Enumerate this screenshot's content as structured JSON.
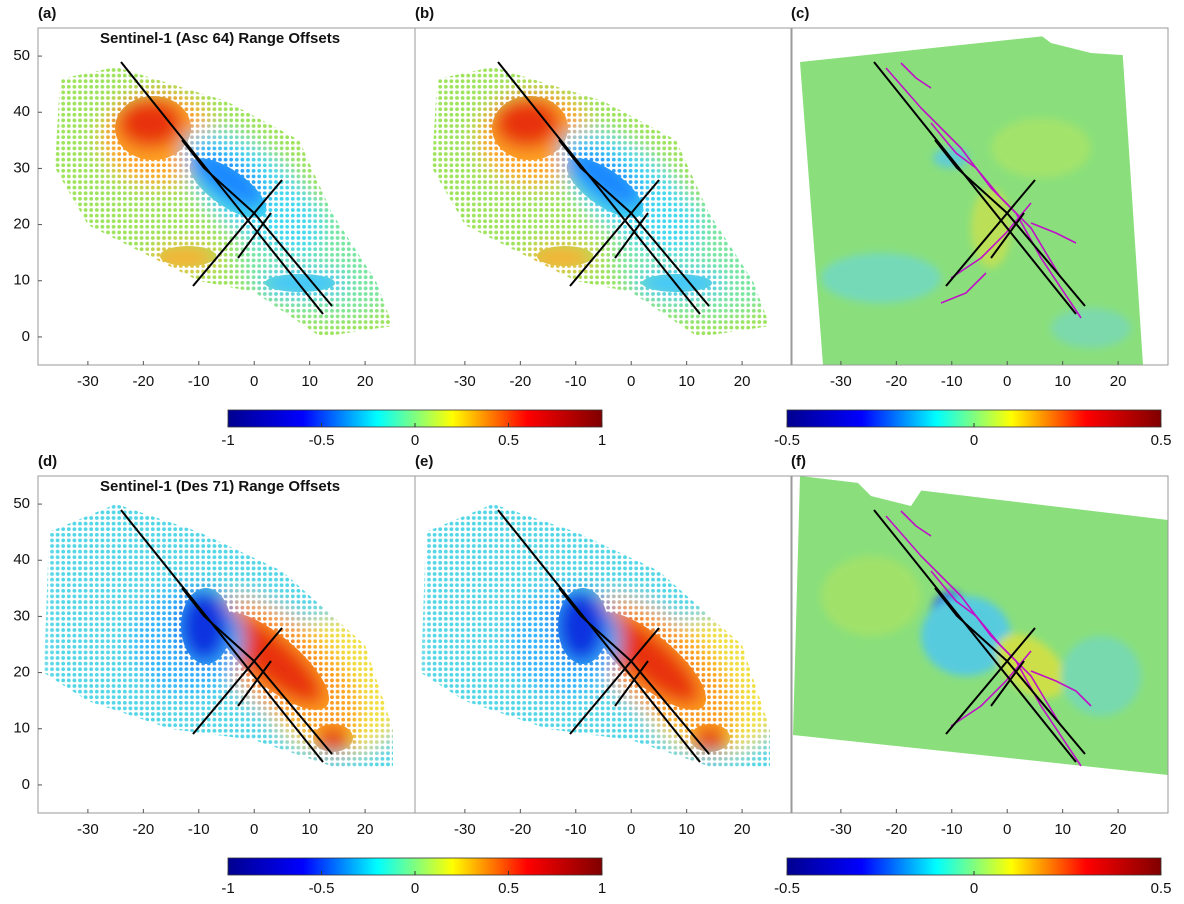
{
  "chart_data": [
    {
      "type": "image",
      "panel_label": "(a)",
      "title": "Sentinel-1 (Asc 64) Range Offsets",
      "xlim": [
        -39,
        29
      ],
      "ylim": [
        -5,
        55
      ],
      "xticks": [
        -30,
        -20,
        -10,
        0,
        10,
        20
      ],
      "yticks": [
        0,
        10,
        20,
        30,
        40,
        50
      ]
    },
    {
      "type": "image",
      "panel_label": "(b)",
      "xlim": [
        -39,
        29
      ],
      "ylim": [
        -5,
        55
      ],
      "xticks": [
        -30,
        -20,
        -10,
        0,
        10,
        20
      ]
    },
    {
      "type": "image",
      "panel_label": "(c)",
      "xlim": [
        -39,
        29
      ],
      "ylim": [
        -5,
        55
      ],
      "xticks": [
        -30,
        -20,
        -10,
        0,
        10,
        20
      ]
    },
    {
      "type": "image",
      "panel_label": "(d)",
      "title": "Sentinel-1 (Des 71) Range Offsets",
      "xlim": [
        -39,
        29
      ],
      "ylim": [
        -5,
        55
      ],
      "xticks": [
        -30,
        -20,
        -10,
        0,
        10,
        20
      ],
      "yticks": [
        0,
        10,
        20,
        30,
        40,
        50
      ]
    },
    {
      "type": "image",
      "panel_label": "(e)",
      "xlim": [
        -39,
        29
      ],
      "ylim": [
        -5,
        55
      ],
      "xticks": [
        -30,
        -20,
        -10,
        0,
        10,
        20
      ]
    },
    {
      "type": "image",
      "panel_label": "(f)",
      "xlim": [
        -39,
        29
      ],
      "ylim": [
        -5,
        55
      ],
      "xticks": [
        -30,
        -20,
        -10,
        0,
        10,
        20
      ]
    },
    {
      "type": "colorbar",
      "clim": [
        -1,
        1
      ],
      "ticks": [
        -1,
        -0.5,
        0,
        0.5,
        1
      ],
      "colormap": [
        "#00008f",
        "#0000ff",
        "#00ffff",
        "#ffff00",
        "#ff0000",
        "#800000"
      ]
    },
    {
      "type": "colorbar",
      "clim": [
        -0.5,
        0.5
      ],
      "ticks": [
        -0.5,
        0,
        0.5
      ],
      "colormap": [
        "#00008f",
        "#0000ff",
        "#00ffff",
        "#ffff00",
        "#ff0000",
        "#800000"
      ]
    },
    {
      "type": "colorbar",
      "clim": [
        -1,
        1
      ],
      "ticks": [
        -1,
        -0.5,
        0,
        0.5,
        1
      ],
      "colormap": [
        "#00008f",
        "#0000ff",
        "#00ffff",
        "#ffff00",
        "#ff0000",
        "#800000"
      ]
    },
    {
      "type": "colorbar",
      "clim": [
        -0.5,
        0.5
      ],
      "ticks": [
        -0.5,
        0,
        0.5
      ],
      "colormap": [
        "#00008f",
        "#0000ff",
        "#00ffff",
        "#ffff00",
        "#ff0000",
        "#800000"
      ]
    }
  ]
}
